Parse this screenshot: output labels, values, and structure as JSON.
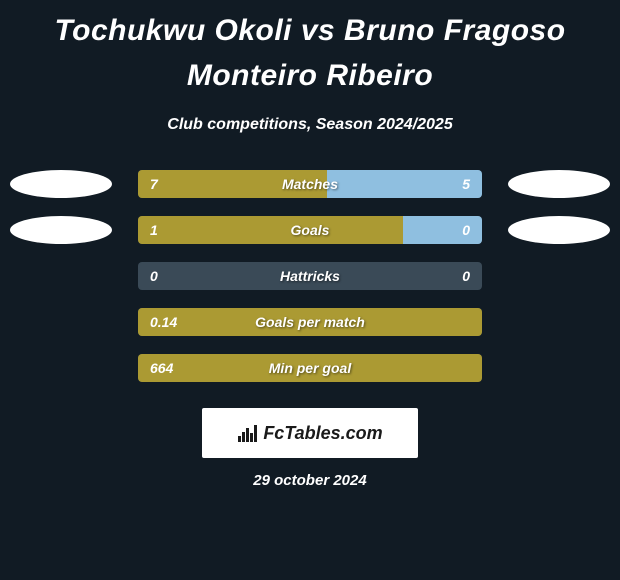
{
  "title": "Tochukwu Okoli vs Bruno Fragoso Monteiro Ribeiro",
  "subtitle": "Club competitions, Season 2024/2025",
  "colors": {
    "background": "#111b24",
    "player1_bar": "#ab9a33",
    "player2_bar": "#8fbfe0",
    "empty_bar": "#3a4a57",
    "oval": "#ffffff",
    "text": "#ffffff"
  },
  "stats": [
    {
      "label": "Matches",
      "left_value": "7",
      "right_value": "5",
      "left_pct": 55,
      "right_pct": 45,
      "left_color": "#ab9a33",
      "right_color": "#8fbfe0",
      "show_ovals": true
    },
    {
      "label": "Goals",
      "left_value": "1",
      "right_value": "0",
      "left_pct": 77,
      "right_pct": 23,
      "left_color": "#ab9a33",
      "right_color": "#8fbfe0",
      "show_ovals": true
    },
    {
      "label": "Hattricks",
      "left_value": "0",
      "right_value": "0",
      "left_pct": 0,
      "right_pct": 0,
      "left_color": "#ab9a33",
      "right_color": "#8fbfe0",
      "show_ovals": false
    },
    {
      "label": "Goals per match",
      "left_value": "0.14",
      "right_value": "",
      "left_pct": 100,
      "right_pct": 0,
      "left_color": "#ab9a33",
      "right_color": "#8fbfe0",
      "show_ovals": false
    },
    {
      "label": "Min per goal",
      "left_value": "664",
      "right_value": "",
      "left_pct": 100,
      "right_pct": 0,
      "left_color": "#ab9a33",
      "right_color": "#8fbfe0",
      "show_ovals": false
    }
  ],
  "footer": {
    "brand": "FcTables.com",
    "date": "29 october 2024"
  }
}
